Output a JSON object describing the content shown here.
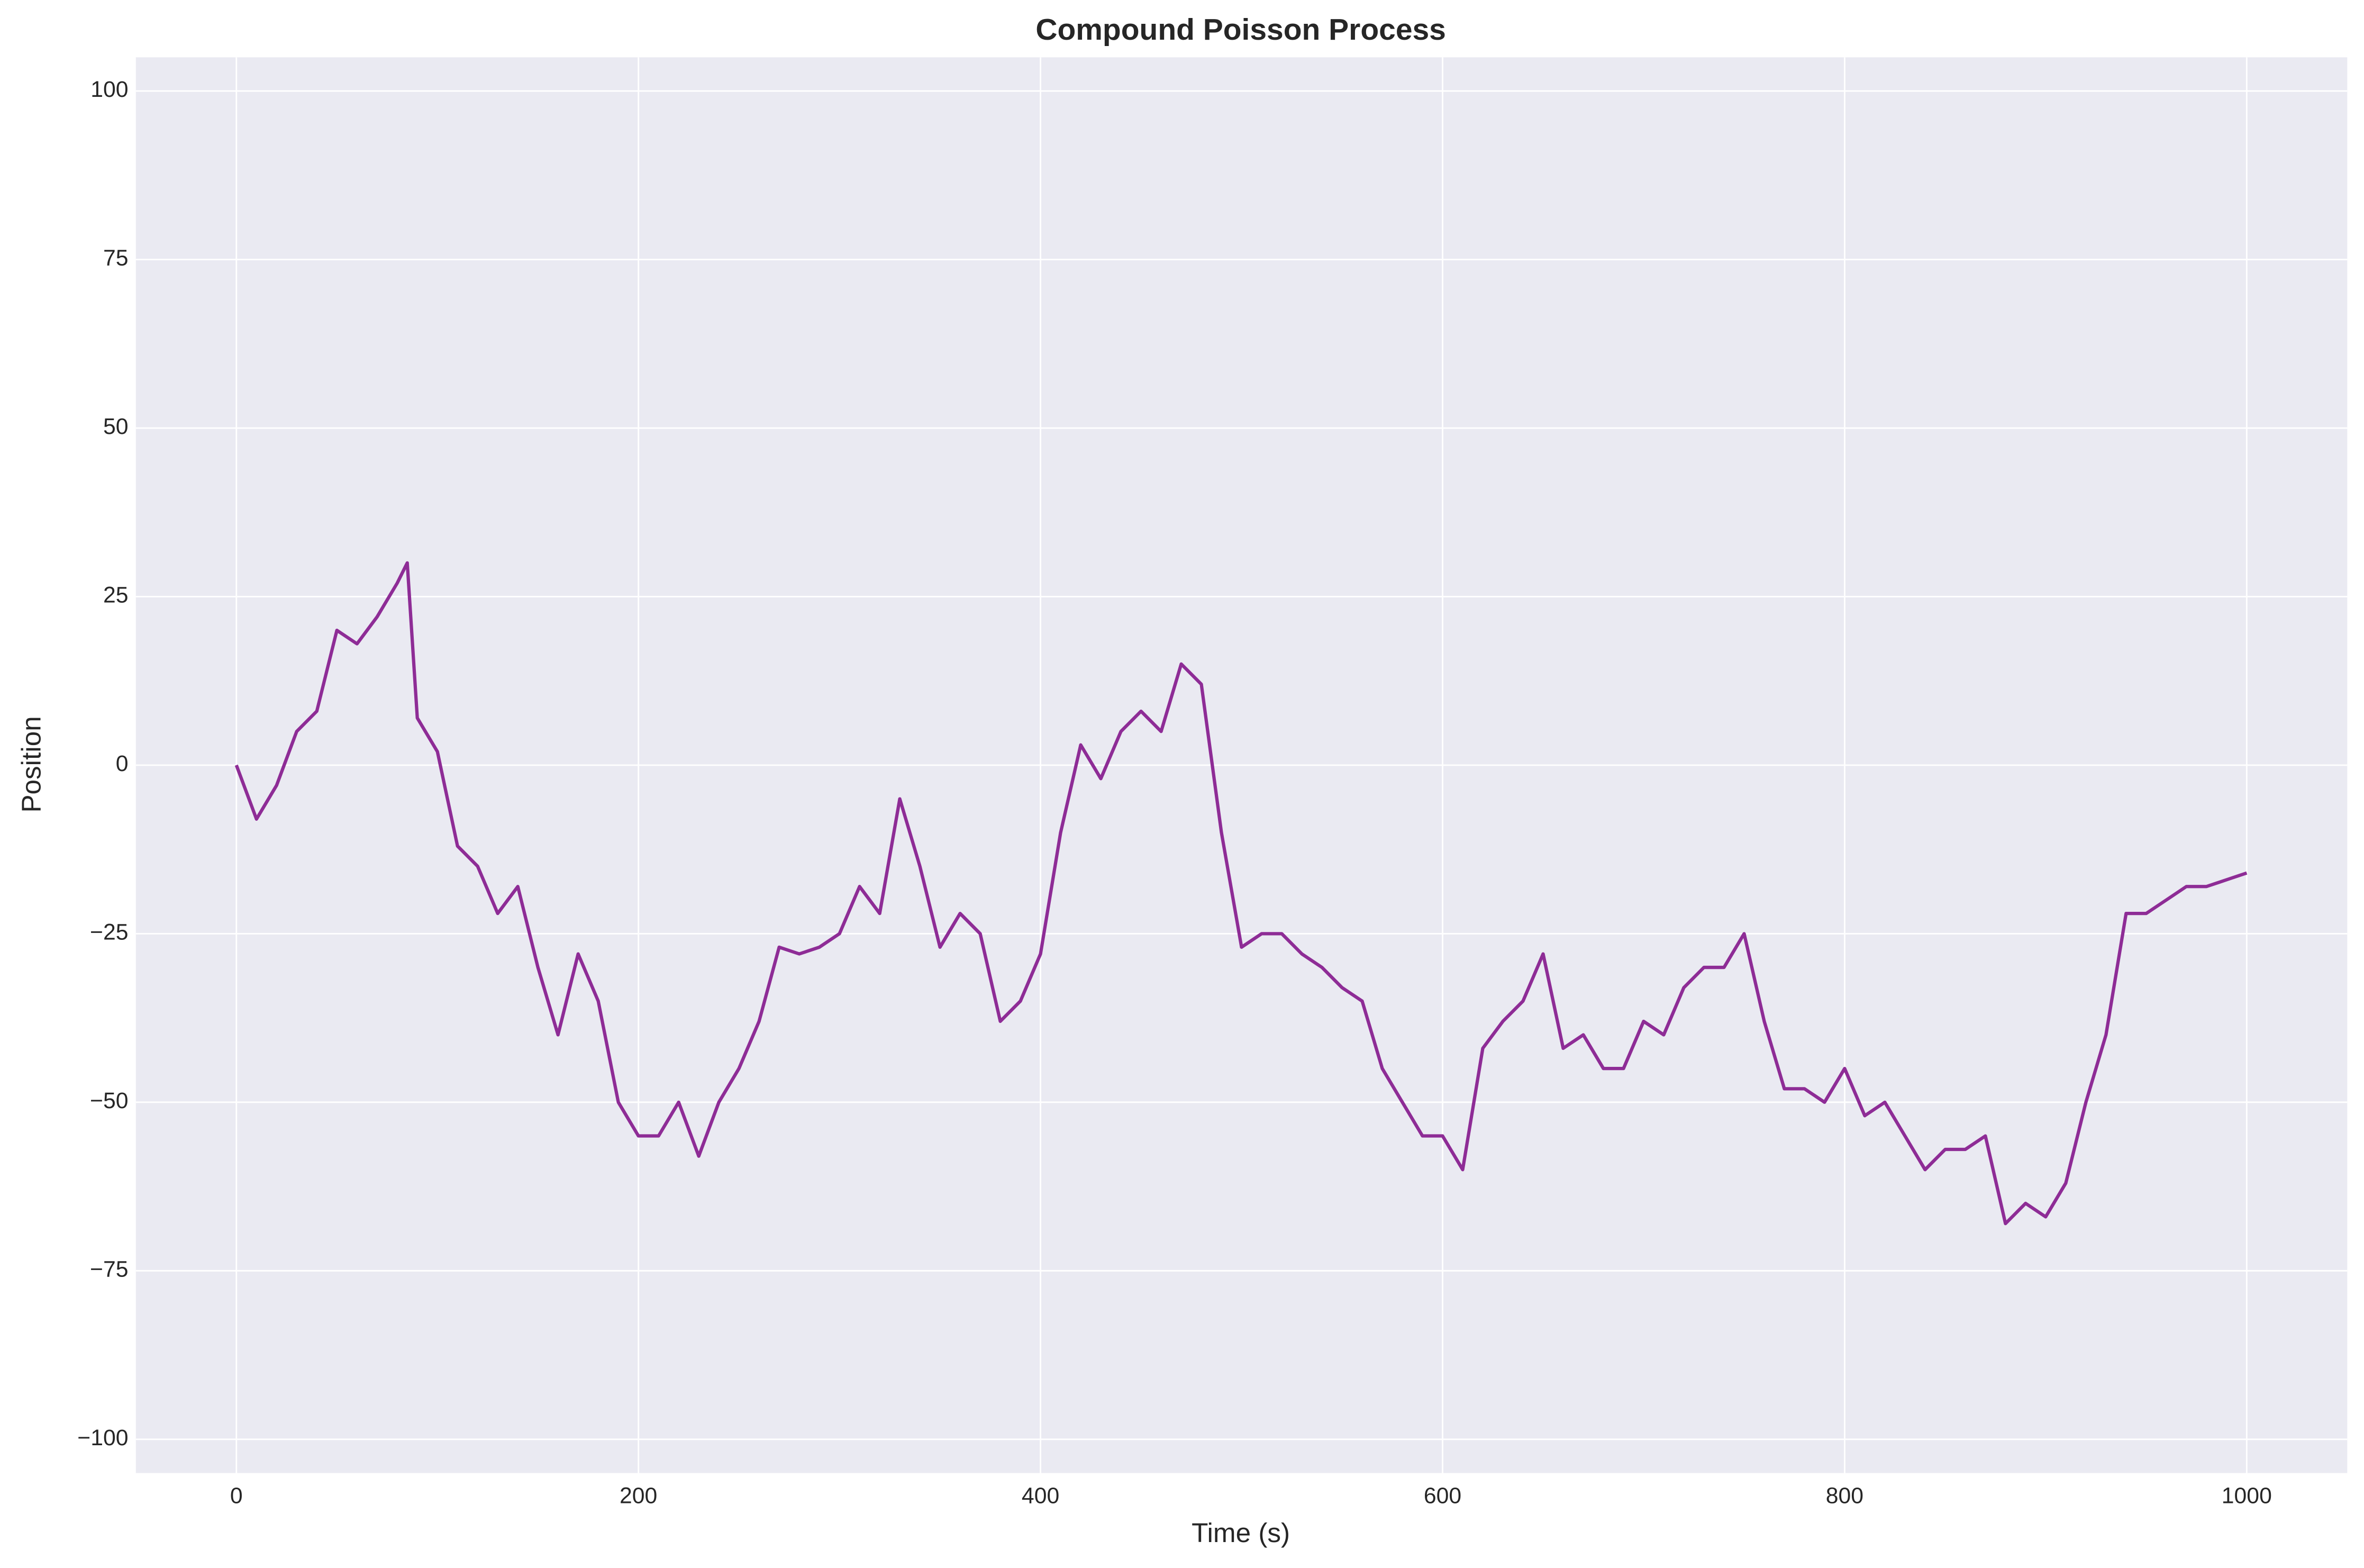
{
  "chart_data": {
    "type": "line",
    "title": "Compound Poisson Process",
    "x_label": "Time (s)",
    "y_label": "Position",
    "x": [
      0,
      10,
      20,
      30,
      40,
      50,
      60,
      70,
      80,
      85,
      90,
      100,
      110,
      120,
      130,
      140,
      150,
      160,
      170,
      180,
      190,
      200,
      210,
      220,
      230,
      240,
      250,
      260,
      270,
      280,
      290,
      300,
      310,
      320,
      330,
      340,
      350,
      360,
      370,
      380,
      390,
      400,
      410,
      420,
      430,
      440,
      450,
      460,
      470,
      480,
      490,
      500,
      510,
      520,
      530,
      540,
      550,
      560,
      570,
      580,
      590,
      600,
      610,
      620,
      630,
      640,
      650,
      660,
      670,
      680,
      690,
      700,
      710,
      720,
      730,
      740,
      750,
      760,
      770,
      780,
      790,
      800,
      810,
      820,
      830,
      840,
      850,
      860,
      870,
      880,
      890,
      900,
      910,
      920,
      930,
      940,
      950,
      960,
      970,
      980,
      990,
      1000
    ],
    "series": [
      {
        "name": "Position",
        "color": "#8e2c96",
        "values": [
          0,
          -8,
          -3,
          5,
          8,
          20,
          18,
          22,
          27,
          30,
          7,
          2,
          -12,
          -15,
          -22,
          -18,
          -30,
          -40,
          -28,
          -35,
          -50,
          -55,
          -55,
          -50,
          -58,
          -50,
          -45,
          -38,
          -27,
          -28,
          -27,
          -25,
          -18,
          -22,
          -5,
          -15,
          -27,
          -22,
          -25,
          -38,
          -35,
          -28,
          -10,
          3,
          -2,
          5,
          8,
          5,
          15,
          12,
          -10,
          -27,
          -25,
          -25,
          -28,
          -30,
          -33,
          -35,
          -45,
          -50,
          -55,
          -55,
          -60,
          -42,
          -38,
          -35,
          -28,
          -42,
          -40,
          -45,
          -45,
          -38,
          -40,
          -33,
          -30,
          -30,
          -25,
          -38,
          -48,
          -48,
          -50,
          -45,
          -52,
          -50,
          -55,
          -60,
          -57,
          -57,
          -55,
          -68,
          -65,
          -67,
          -62,
          -50,
          -40,
          -22,
          -22,
          -20,
          -18,
          -18,
          -17,
          -16
        ]
      }
    ],
    "xlim": [
      -50,
      1050
    ],
    "ylim": [
      -105,
      105
    ],
    "xticks": [
      0,
      200,
      400,
      600,
      800,
      1000
    ],
    "yticks": [
      {
        "value": -100,
        "label": "−100"
      },
      {
        "value": -75,
        "label": "−75"
      },
      {
        "value": -50,
        "label": "−50"
      },
      {
        "value": -25,
        "label": "−25"
      },
      0,
      25,
      50,
      75,
      100
    ],
    "grid": true
  }
}
